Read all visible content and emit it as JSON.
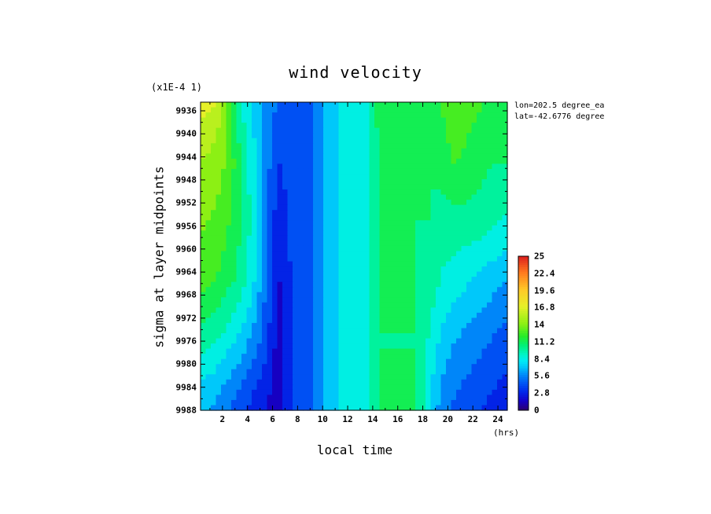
{
  "chart_data": {
    "type": "heatmap",
    "title": "wind velocity",
    "xlabel": "local time",
    "ylabel": "sigma at layer midpoints",
    "x_unit": "(hrs)",
    "y_scale_note": "(x1E-4 1)",
    "annotations": [
      "lon=202.5 degree_ea",
      "lat=-42.6776 degree"
    ],
    "xlim": [
      0.25,
      24.75
    ],
    "ylim": [
      9988,
      9934.5
    ],
    "x_ticks": [
      2,
      4,
      6,
      8,
      10,
      12,
      14,
      16,
      18,
      20,
      22,
      24
    ],
    "y_ticks": [
      9936,
      9940,
      9944,
      9948,
      9952,
      9956,
      9960,
      9964,
      9968,
      9972,
      9976,
      9980,
      9984,
      9988
    ],
    "colorbar": {
      "range": [
        0,
        25
      ],
      "ticks": [
        "25",
        "22.4",
        "19.6",
        "16.8",
        "14",
        "11.2",
        "8.4",
        "5.6",
        "2.8",
        "0"
      ]
    },
    "x": [
      0.5,
      1.5,
      2.5,
      3.5,
      4.5,
      5.5,
      6.5,
      7.5,
      8.5,
      9.5,
      10.5,
      11.5,
      12.5,
      13.5,
      14.5,
      15.5,
      16.5,
      17.5,
      18.5,
      19.5,
      20.5,
      21.5,
      22.5,
      23.5,
      24.5
    ],
    "y": [
      9935,
      9945,
      9955,
      9965,
      9975,
      9985,
      9988
    ],
    "z": [
      [
        16.5,
        16.0,
        12.5,
        9.0,
        7.5,
        6.0,
        4.5,
        4.5,
        3.5,
        5.5,
        7.0,
        8.0,
        8.0,
        9.0,
        11.0,
        11.5,
        11.5,
        11.0,
        11.0,
        12.0,
        13.0,
        12.5,
        12.0,
        11.0,
        11.0
      ],
      [
        14.5,
        14.0,
        13.0,
        10.5,
        8.0,
        5.5,
        3.5,
        4.0,
        3.5,
        5.5,
        7.0,
        8.0,
        8.0,
        9.0,
        10.5,
        11.0,
        11.0,
        11.0,
        10.5,
        11.0,
        12.0,
        11.5,
        11.0,
        10.5,
        10.5
      ],
      [
        13.5,
        13.0,
        12.0,
        10.5,
        8.5,
        5.0,
        2.5,
        4.0,
        3.5,
        5.5,
        7.0,
        8.0,
        8.0,
        9.0,
        10.5,
        10.5,
        10.5,
        10.5,
        10.5,
        10.0,
        10.0,
        10.0,
        10.0,
        9.5,
        9.0
      ],
      [
        12.5,
        12.0,
        11.0,
        10.0,
        8.0,
        5.0,
        2.0,
        3.5,
        3.5,
        5.5,
        7.0,
        8.0,
        8.0,
        9.0,
        10.5,
        10.5,
        10.5,
        10.5,
        10.0,
        9.0,
        8.5,
        8.0,
        7.5,
        7.0,
        6.5
      ],
      [
        10.0,
        9.5,
        8.5,
        7.5,
        6.0,
        4.0,
        1.5,
        3.5,
        3.5,
        5.5,
        7.0,
        8.0,
        8.0,
        9.0,
        10.5,
        10.5,
        10.5,
        10.5,
        9.0,
        7.5,
        6.5,
        6.0,
        5.5,
        5.0,
        4.5
      ],
      [
        7.0,
        6.5,
        5.5,
        4.5,
        3.5,
        2.5,
        1.0,
        3.5,
        3.5,
        5.5,
        7.0,
        8.0,
        8.0,
        9.0,
        10.5,
        10.5,
        10.5,
        10.5,
        8.0,
        6.0,
        5.0,
        4.5,
        4.0,
        3.5,
        3.0
      ],
      [
        6.5,
        6.0,
        5.0,
        4.0,
        3.0,
        2.0,
        1.0,
        3.5,
        3.5,
        5.5,
        7.0,
        8.0,
        8.0,
        9.0,
        10.5,
        10.5,
        10.5,
        10.5,
        8.0,
        5.5,
        4.5,
        4.0,
        3.5,
        3.0,
        3.0
      ]
    ]
  }
}
